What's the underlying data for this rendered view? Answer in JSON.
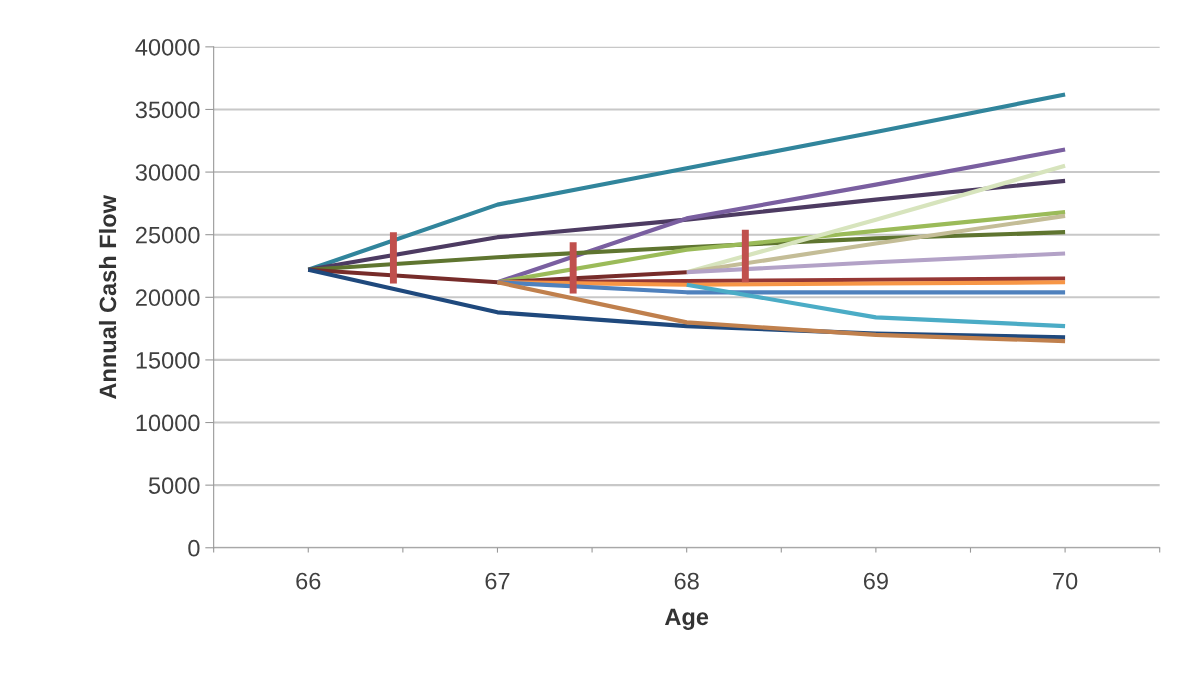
{
  "chart_data": {
    "type": "line",
    "xlabel": "Age",
    "ylabel": "Annual Cash Flow",
    "xlim": [
      65.5,
      70.5
    ],
    "xticks": [
      {
        "value": 65.5,
        "label": null
      },
      66,
      {
        "value": 66.5,
        "label": null
      },
      67,
      {
        "value": 67.5,
        "label": null
      },
      68,
      {
        "value": 68.5,
        "label": null
      },
      69,
      {
        "value": 69.5,
        "label": null
      },
      70,
      {
        "value": 70.5,
        "label": null
      }
    ],
    "ylim": [
      0,
      40000
    ],
    "yticks": [
      0,
      5000,
      10000,
      15000,
      20000,
      25000,
      30000,
      35000,
      40000
    ],
    "grid": "y",
    "legend": false,
    "line_style": "solid",
    "marker": "none",
    "series": [
      {
        "color": "#31859c",
        "x": [
          66,
          67,
          68,
          69,
          70
        ],
        "values": [
          22200,
          27400,
          30300,
          33200,
          36200
        ]
      },
      {
        "color": "#4d3b62",
        "x": [
          66,
          67,
          68,
          69,
          70
        ],
        "values": [
          22200,
          24800,
          26200,
          27800,
          29300
        ]
      },
      {
        "color": "#7a5fa0",
        "x": [
          67,
          68,
          69,
          70
        ],
        "values": [
          21200,
          26300,
          29000,
          31800
        ]
      },
      {
        "color": "#5f7530",
        "x": [
          66,
          67,
          68,
          69,
          70
        ],
        "values": [
          22200,
          23200,
          24000,
          24700,
          25200
        ]
      },
      {
        "color": "#9bbb59",
        "x": [
          67,
          68,
          69,
          70
        ],
        "values": [
          21200,
          23800,
          25300,
          26800
        ]
      },
      {
        "color": "#d7e4bd",
        "x": [
          68,
          69,
          70
        ],
        "values": [
          22000,
          26200,
          30500
        ]
      },
      {
        "color": "#c4bd97",
        "x": [
          68,
          69,
          70
        ],
        "values": [
          22000,
          24300,
          26500
        ]
      },
      {
        "color": "#b3a2c7",
        "x": [
          68,
          69,
          70
        ],
        "values": [
          22000,
          22800,
          23500
        ]
      },
      {
        "color": "#772c2a",
        "x": [
          66,
          67,
          68
        ],
        "values": [
          22200,
          21200,
          22000
        ]
      },
      {
        "color": "#953735",
        "x": [
          67,
          68,
          69,
          70
        ],
        "values": [
          21200,
          21300,
          21400,
          21500
        ]
      },
      {
        "color": "#f79646",
        "x": [
          67,
          68,
          69,
          70
        ],
        "values": [
          21200,
          21000,
          21100,
          21200
        ]
      },
      {
        "color": "#4f81bd",
        "x": [
          67,
          68,
          69,
          70
        ],
        "values": [
          21200,
          20400,
          20400,
          20400
        ]
      },
      {
        "color": "#4bacc6",
        "x": [
          68,
          69,
          70
        ],
        "values": [
          21000,
          18400,
          17700
        ]
      },
      {
        "color": "#1f497d",
        "x": [
          66,
          67,
          68,
          69,
          70
        ],
        "values": [
          22200,
          18800,
          17700,
          17100,
          16800
        ]
      },
      {
        "color": "#c0804d",
        "x": [
          67,
          68,
          69,
          70
        ],
        "values": [
          21200,
          18000,
          17000,
          16500
        ]
      },
      {
        "color": "#c0504d",
        "x": [
          66.45,
          66.45
        ],
        "values": [
          25200,
          21100
        ]
      },
      {
        "color": "#c0504d",
        "x": [
          67.4,
          67.4
        ],
        "values": [
          24400,
          20300
        ]
      },
      {
        "color": "#c0504d",
        "x": [
          68.31,
          68.31
        ],
        "values": [
          25400,
          21200
        ]
      }
    ]
  }
}
